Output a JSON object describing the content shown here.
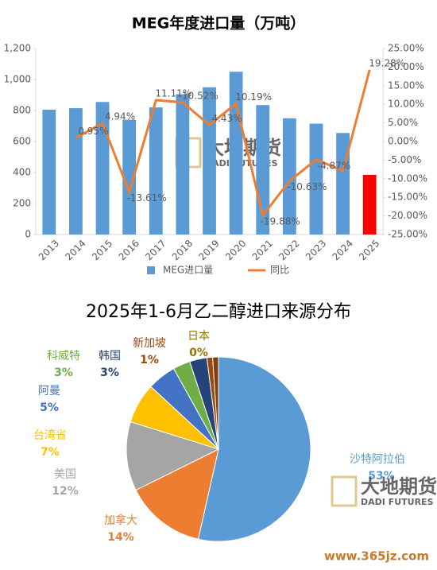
{
  "chart_data": [
    {
      "type": "bar_line",
      "title": "MEG年度进口量（万吨）",
      "categories": [
        "2013",
        "2014",
        "2015",
        "2016",
        "2017",
        "2018",
        "2019",
        "2020",
        "2021",
        "2022",
        "2023",
        "2024",
        "2025"
      ],
      "series": [
        {
          "name": "MEG进口量",
          "type": "bar",
          "color": "#5b9bd5",
          "point_colors": [
            "#5b9bd5",
            "#5b9bd5",
            "#5b9bd5",
            "#5b9bd5",
            "#5b9bd5",
            "#5b9bd5",
            "#5b9bd5",
            "#5b9bd5",
            "#5b9bd5",
            "#5b9bd5",
            "#5b9bd5",
            "#5b9bd5",
            "#ff0000"
          ],
          "values": [
            805,
            815,
            855,
            740,
            820,
            905,
            950,
            1050,
            835,
            750,
            715,
            655,
            385
          ]
        },
        {
          "name": "同比",
          "type": "line",
          "axis": "y2",
          "color": "#ed7d31",
          "values": [
            null,
            0.95,
            4.94,
            -13.61,
            11.11,
            10.52,
            4.43,
            10.19,
            -19.88,
            -10.63,
            -4.87,
            -7.9,
            19.28
          ],
          "value_labels": [
            null,
            "0.95%",
            "4.94%",
            "-13.61%",
            "11.11%",
            "10.52%",
            "4.43%",
            "10.19%",
            "-19.88%",
            "-10.63%",
            "-4.87%",
            null,
            "19.28%"
          ]
        }
      ],
      "ylim": [
        0,
        1200
      ],
      "yticks": [
        0,
        200,
        400,
        600,
        800,
        {
          "value": 1000,
          "label": "1,000"
        },
        {
          "value": 1200,
          "label": "1,200"
        }
      ],
      "y2lim": [
        -25,
        25
      ],
      "y2ticks": [
        {
          "value": -25,
          "label": "-25.00%"
        },
        {
          "value": -20,
          "label": "-20.00%"
        },
        {
          "value": -15,
          "label": "-15.00%"
        },
        {
          "value": -10,
          "label": "-10.00%"
        },
        {
          "value": -5,
          "label": "-5.00%"
        },
        {
          "value": 0,
          "label": "0.00%"
        },
        {
          "value": 5,
          "label": "5.00%"
        },
        {
          "value": 10,
          "label": "10.00%"
        },
        {
          "value": 15,
          "label": "15.00%"
        },
        {
          "value": 20,
          "label": "20.00%"
        },
        {
          "value": 25,
          "label": "25.00%"
        }
      ],
      "watermark": [
        "大地期货",
        "DADI FUTURES"
      ],
      "legend": "bottom"
    },
    {
      "type": "pie",
      "title": "2025年1-6月乙二醇进口来源分布",
      "categories": [
        "沙特阿拉伯",
        "加拿大",
        "美国",
        "台湾省",
        "阿曼",
        "科威特",
        "韩国",
        "新加坡",
        null,
        "日本"
      ],
      "values": [
        53,
        14,
        12,
        7,
        5,
        3,
        3,
        1,
        1,
        0
      ],
      "value_labels": [
        "53%",
        "14%",
        "12%",
        "7%",
        "5%",
        "3%",
        "3%",
        "1%",
        null,
        "0%"
      ],
      "colors": [
        "#5b9bd5",
        "#ed7d31",
        "#a5a5a5",
        "#ffc000",
        "#4472c4",
        "#70ad47",
        "#264478",
        "#9e480e",
        "#843c0c",
        "#997300"
      ],
      "watermark": [
        "大地期货",
        "DADI FUTURES"
      ],
      "site": "www.365jz.com"
    }
  ]
}
